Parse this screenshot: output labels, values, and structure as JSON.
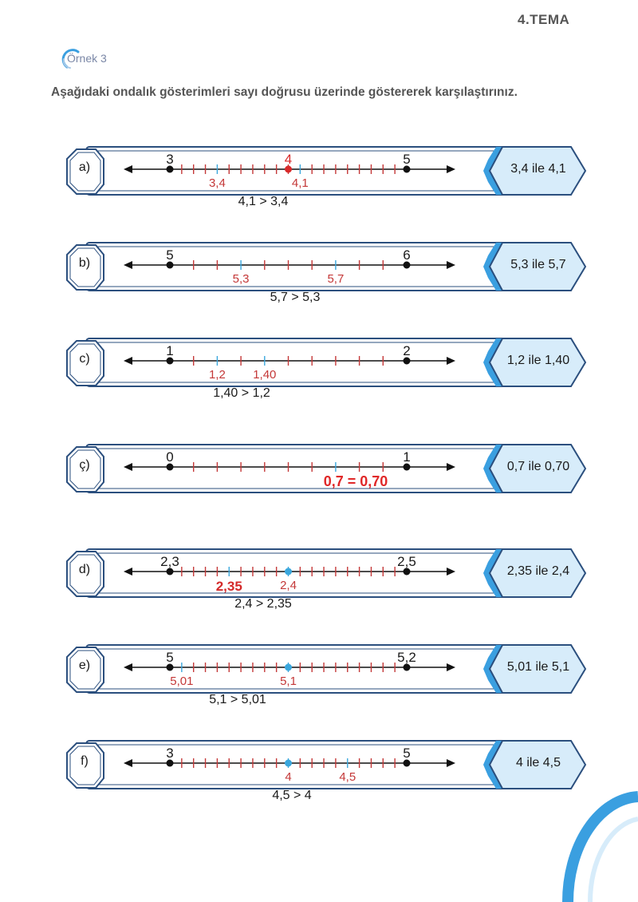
{
  "header": {
    "tema": "4.TEMA",
    "ornek": "Örnek 3"
  },
  "instruction": "Aşağıdaki ondalık gösterimleri sayı doğrusu üzerinde göstererek karşılaştırınız.",
  "colors": {
    "frame": "#2b4f7e",
    "box_fill": "#d7ecfa",
    "box_tab": "#3a9fe0",
    "tick": "#c43838",
    "highlight": "#3aa7dd",
    "point_red": "#d82a2a",
    "label_red": "#c43838"
  },
  "rows": [
    {
      "letter": "a)",
      "box": "3,4 ile 4,1",
      "start_label": "3",
      "end_label": "5",
      "mid_label": "4",
      "divisions": 20,
      "mid_dot": "red",
      "blue_ticks": [
        4,
        11
      ],
      "points": [
        {
          "label": "3,4",
          "pos": 4
        },
        {
          "label": "4,1",
          "pos": 11
        }
      ],
      "comparison": "4,1 > 3,4",
      "cmp_red": false
    },
    {
      "letter": "b)",
      "box": "5,3 ile 5,7",
      "start_label": "5",
      "end_label": "6",
      "mid_label": "",
      "divisions": 10,
      "mid_dot": "",
      "blue_ticks": [
        3,
        7
      ],
      "points": [
        {
          "label": "5,3",
          "pos": 3
        },
        {
          "label": "5,7",
          "pos": 7
        }
      ],
      "comparison": "5,7 > 5,3",
      "cmp_red": false
    },
    {
      "letter": "c)",
      "box": "1,2 ile 1,40",
      "start_label": "1",
      "end_label": "2",
      "mid_label": "",
      "divisions": 10,
      "mid_dot": "",
      "blue_ticks": [
        2,
        4
      ],
      "points": [
        {
          "label": "1,2",
          "pos": 2
        },
        {
          "label": "1,40",
          "pos": 4
        }
      ],
      "comparison": "1,40 > 1,2",
      "cmp_red": false
    },
    {
      "letter": "ç)",
      "box": "0,7 ile 0,70",
      "start_label": "0",
      "end_label": "1",
      "mid_label": "",
      "divisions": 10,
      "mid_dot": "",
      "blue_ticks": [
        7
      ],
      "points": [],
      "comparison": "0,7 = 0,70",
      "cmp_red": true
    },
    {
      "letter": "d)",
      "box": "2,35 ile 2,4",
      "start_label": "2,3",
      "end_label": "2,5",
      "mid_label": "",
      "divisions": 20,
      "mid_dot": "blue",
      "blue_ticks": [
        5,
        10
      ],
      "points": [
        {
          "label": "2,35",
          "pos": 5,
          "bold": true
        },
        {
          "label": "2,4",
          "pos": 10
        }
      ],
      "comparison": "2,4 > 2,35",
      "cmp_red": false
    },
    {
      "letter": "e)",
      "box": "5,01 ile 5,1",
      "start_label": "5",
      "end_label": "5,2",
      "mid_label": "",
      "divisions": 20,
      "mid_dot": "blue",
      "blue_ticks": [
        1,
        10
      ],
      "points": [
        {
          "label": "5,01",
          "pos": 1
        },
        {
          "label": "5,1",
          "pos": 10
        }
      ],
      "comparison": "5,1 > 5,01",
      "cmp_red": false
    },
    {
      "letter": "f)",
      "box": "4 ile 4,5",
      "start_label": "3",
      "end_label": "5",
      "mid_label": "",
      "divisions": 20,
      "mid_dot": "blue",
      "blue_ticks": [
        10,
        15
      ],
      "points": [
        {
          "label": "4",
          "pos": 10
        },
        {
          "label": "4,5",
          "pos": 15
        }
      ],
      "comparison": "4,5 > 4",
      "cmp_red": false
    }
  ]
}
